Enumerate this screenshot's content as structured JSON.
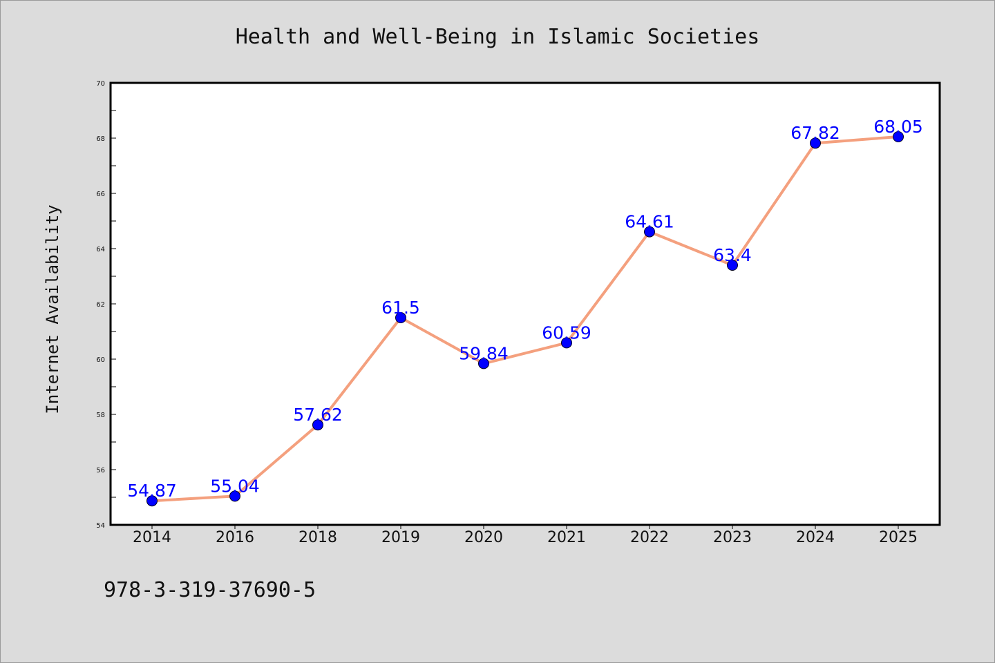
{
  "colors": {
    "background": "#dcdcdc",
    "plot_background": "#ffffff",
    "line": "#f4a07e",
    "marker": "#0000ff",
    "data_label": "#0000ff"
  },
  "footer_text": "978-3-319-37690-5",
  "chart_data": {
    "type": "line",
    "title": "Health and Well-Being in Islamic Societies",
    "xlabel": "",
    "ylabel": "Internet Availability",
    "categories": [
      "2014",
      "2016",
      "2018",
      "2019",
      "2020",
      "2021",
      "2022",
      "2023",
      "2024",
      "2025"
    ],
    "series": [
      {
        "values": [
          54.87,
          55.04,
          57.62,
          61.5,
          59.84,
          60.59,
          64.61,
          63.4,
          67.82,
          68.05
        ],
        "labels": [
          "54.87",
          "55.04",
          "57.62",
          "61.5",
          "59.84",
          "60.59",
          "64.61",
          "63.4",
          "67.82",
          "68.05"
        ]
      }
    ],
    "ylim": [
      54,
      70
    ],
    "yticks": [
      "54",
      "56",
      "58",
      "60",
      "62",
      "64",
      "66",
      "68",
      "70"
    ],
    "grid": false,
    "legend": "none"
  }
}
